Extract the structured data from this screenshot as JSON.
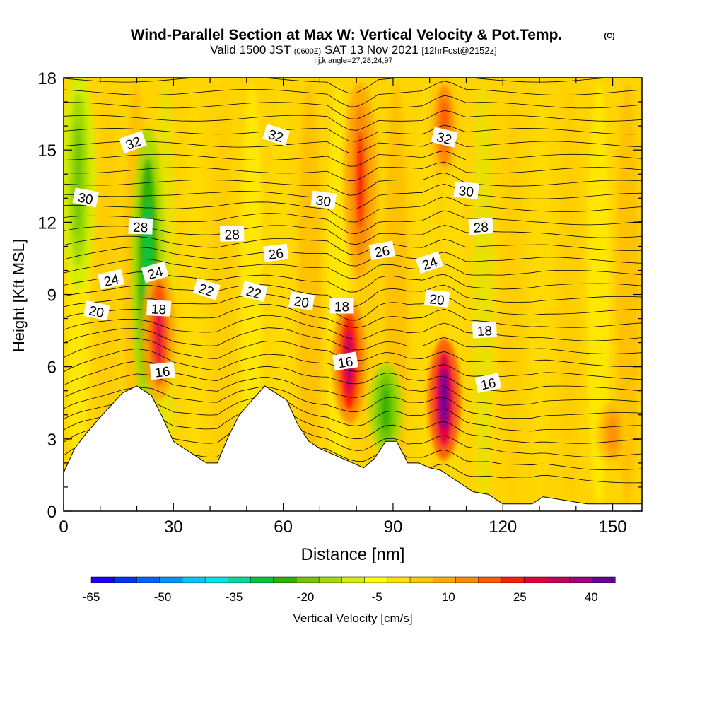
{
  "header": {
    "title": "Wind-Parallel Section at Max W: Vertical Velocity & Pot.Temp.",
    "title_mark": "(C)",
    "valid_prefix": "Valid 1500 JST",
    "valid_utc": "(0600Z)",
    "valid_date": "SAT 13 Nov 2021",
    "forecast": "[12hrFcst@2152z]",
    "indices": "i,j,k,angle=27,28,24,97"
  },
  "chart_data": {
    "type": "heatmap",
    "title": "Wind-Parallel Section at Max W: Vertical Velocity & Pot.Temp.",
    "xlabel": "Distance [nm]",
    "ylabel": "Height [Kft MSL]",
    "xlim": [
      0,
      158
    ],
    "ylim": [
      0,
      18
    ],
    "x_ticks": [
      0,
      30,
      60,
      90,
      120,
      150
    ],
    "y_ticks": [
      0,
      3,
      6,
      9,
      12,
      15,
      18
    ],
    "colorbar": {
      "label": "Vertical Velocity [cm/s]",
      "tick_labels": [
        "-65",
        "-50",
        "-35",
        "-20",
        "-5",
        "10",
        "25",
        "40"
      ],
      "tick_values": [
        -65,
        -50,
        -35,
        -20,
        -5,
        10,
        25,
        40
      ],
      "bins": [
        -65,
        -60,
        -55,
        -50,
        -45,
        -40,
        -35,
        -30,
        -25,
        -20,
        -15,
        -10,
        -5,
        0,
        5,
        10,
        15,
        20,
        25,
        30,
        35,
        40,
        45
      ],
      "colors": [
        "#1c00ff",
        "#0032ff",
        "#0064ff",
        "#0096ff",
        "#00c8ff",
        "#00e6e6",
        "#00dca0",
        "#00c83c",
        "#2db400",
        "#73c800",
        "#a5dc00",
        "#d2f000",
        "#ffff00",
        "#ffe100",
        "#ffc800",
        "#ffaa00",
        "#ff8c00",
        "#ff5a00",
        "#ff1e00",
        "#e6003c",
        "#c8005a",
        "#a0007d",
        "#640096"
      ]
    },
    "vertical_velocity_features": [
      {
        "x": 4,
        "y_bottom": 9.5,
        "y_top": 18,
        "w": -20
      },
      {
        "x": 23,
        "y_bottom": 4.5,
        "y_top": 15.5,
        "w": -30
      },
      {
        "x": 26,
        "y_bottom": 4.8,
        "y_top": 10,
        "w": 30
      },
      {
        "x": 78,
        "y_bottom": 3.8,
        "y_top": 8.6,
        "w": 35
      },
      {
        "x": 81,
        "y_bottom": 10,
        "y_top": 17.5,
        "w": 25
      },
      {
        "x": 88,
        "y_bottom": 2.5,
        "y_top": 6,
        "w": -25
      },
      {
        "x": 104,
        "y_bottom": 2.3,
        "y_top": 7,
        "w": 45
      },
      {
        "x": 104,
        "y_bottom": 14,
        "y_top": 18,
        "w": 20
      },
      {
        "x": 150,
        "y_bottom": 2,
        "y_top": 4.5,
        "w": 15
      }
    ],
    "theta_contour_labels": [
      {
        "text": "32",
        "x": 19,
        "y": 15.3
      },
      {
        "text": "32",
        "x": 58,
        "y": 15.6
      },
      {
        "text": "32",
        "x": 104,
        "y": 15.5
      },
      {
        "text": "30",
        "x": 6,
        "y": 13
      },
      {
        "text": "30",
        "x": 71,
        "y": 12.9
      },
      {
        "text": "30",
        "x": 110,
        "y": 13.3
      },
      {
        "text": "28",
        "x": 21,
        "y": 11.8
      },
      {
        "text": "28",
        "x": 46,
        "y": 11.5
      },
      {
        "text": "28",
        "x": 114,
        "y": 11.8
      },
      {
        "text": "26",
        "x": 58,
        "y": 10.7
      },
      {
        "text": "26",
        "x": 87,
        "y": 10.8
      },
      {
        "text": "24",
        "x": 13,
        "y": 9.6
      },
      {
        "text": "24",
        "x": 25,
        "y": 9.9
      },
      {
        "text": "24",
        "x": 100,
        "y": 10.3
      },
      {
        "text": "22",
        "x": 39,
        "y": 9.2
      },
      {
        "text": "22",
        "x": 52,
        "y": 9.1
      },
      {
        "text": "20",
        "x": 9,
        "y": 8.3
      },
      {
        "text": "20",
        "x": 65,
        "y": 8.7
      },
      {
        "text": "20",
        "x": 102,
        "y": 8.8
      },
      {
        "text": "18",
        "x": 26,
        "y": 8.4
      },
      {
        "text": "18",
        "x": 76,
        "y": 8.5
      },
      {
        "text": "18",
        "x": 115,
        "y": 7.5
      },
      {
        "text": "16",
        "x": 27,
        "y": 5.8
      },
      {
        "text": "16",
        "x": 77,
        "y": 6.2
      },
      {
        "text": "16",
        "x": 116,
        "y": 5.3
      }
    ],
    "terrain": [
      [
        0,
        1.6
      ],
      [
        3,
        2.6
      ],
      [
        6,
        3.2
      ],
      [
        10,
        3.9
      ],
      [
        13,
        4.4
      ],
      [
        16,
        4.9
      ],
      [
        20,
        5.2
      ],
      [
        24,
        4.8
      ],
      [
        27,
        3.9
      ],
      [
        30,
        2.9
      ],
      [
        33,
        2.6
      ],
      [
        36,
        2.3
      ],
      [
        39,
        2.0
      ],
      [
        42,
        2.0
      ],
      [
        45,
        3.1
      ],
      [
        48,
        4.0
      ],
      [
        52,
        4.7
      ],
      [
        55,
        5.2
      ],
      [
        58,
        4.9
      ],
      [
        61,
        4.6
      ],
      [
        64,
        3.6
      ],
      [
        67,
        2.9
      ],
      [
        70,
        2.6
      ],
      [
        73,
        2.4
      ],
      [
        76,
        2.2
      ],
      [
        79,
        2.0
      ],
      [
        82,
        1.8
      ],
      [
        85,
        2.2
      ],
      [
        88,
        2.9
      ],
      [
        91,
        2.9
      ],
      [
        94,
        2.0
      ],
      [
        97,
        2.0
      ],
      [
        100,
        1.8
      ],
      [
        103,
        1.7
      ],
      [
        106,
        1.4
      ],
      [
        109,
        1.1
      ],
      [
        112,
        0.8
      ],
      [
        116,
        0.7
      ],
      [
        120,
        0.3
      ],
      [
        128,
        0.3
      ],
      [
        131,
        0.6
      ],
      [
        143,
        0.3
      ],
      [
        158,
        0.3
      ]
    ]
  }
}
